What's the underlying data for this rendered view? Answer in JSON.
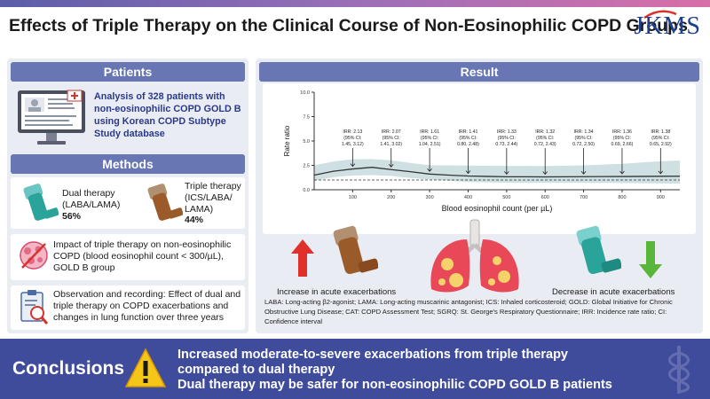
{
  "title": "Effects of Triple Therapy on the Clinical Course of Non-Eosinophilic COPD Groups",
  "logo": "JKMS",
  "patients": {
    "header": "Patients",
    "text": "Analysis of 328 patients with non-eosinophilic COPD GOLD B using Korean COPD Subtype Study database"
  },
  "methods": {
    "header": "Methods",
    "dual_label": "Dual therapy (LABA/LAMA)",
    "dual_pct": "56%",
    "triple_label": "Triple therapy (ICS/LABA/ LAMA)",
    "triple_pct": "44%",
    "impact_text": "Impact of triple therapy on non-eosinophilic COPD (blood eosinophil count < 300/µL), GOLD B group",
    "observation_text": "Observation and recording: Effect of dual and triple therapy on COPD exacerbations and changes in lung function over three years"
  },
  "result": {
    "header": "Result",
    "increase_label": "Increase in acute exacerbations",
    "decrease_label": "Decrease in acute exacerbations",
    "footnote": "LABA: Long-acting β2-agonist; LAMA: Long-acting muscarinic antagonist; ICS: Inhaled corticosteroid; GOLD: Global Initiative for Chronic Obstructive Lung Disease; CAT: COPD Assessment Test; SGRQ: St. George's Respiratory Questionnaire; IRR: Incidence rate ratio; CI: Confidence interval"
  },
  "conclusions": {
    "label": "Conclusions",
    "line1": "Increased moderate-to-severe exacerbations from triple therapy",
    "line2": "compared to dual therapy",
    "line3": "Dual therapy may be safer for non-eosinophilic COPD GOLD B patients"
  },
  "colors": {
    "accent": "#6876b3",
    "panel": "#e9ecf2",
    "bottom": "#3f4c9c",
    "up_arrow": "#e0302a",
    "down_arrow": "#5ab63a",
    "curve": "#333333",
    "band": "#cfe0e3"
  },
  "chart_data": {
    "type": "line",
    "xlabel": "Blood eosinophil count (per µL)",
    "ylabel": "Rate ratio",
    "xlim": [
      0,
      950
    ],
    "ylim": [
      0,
      10
    ],
    "x_ticks": [
      100,
      200,
      300,
      400,
      500,
      600,
      700,
      800,
      900
    ],
    "y_ticks": [
      "0.0",
      "2.5",
      "5.0",
      "7.5",
      "10.0"
    ],
    "curve": {
      "x": [
        0,
        50,
        100,
        150,
        200,
        250,
        300,
        350,
        400,
        450,
        500,
        550,
        600,
        650,
        700,
        750,
        800,
        850,
        900,
        950
      ],
      "y": [
        1.5,
        1.9,
        2.13,
        2.3,
        2.07,
        1.85,
        1.61,
        1.5,
        1.41,
        1.37,
        1.33,
        1.33,
        1.32,
        1.33,
        1.34,
        1.35,
        1.36,
        1.37,
        1.38,
        1.39
      ],
      "lower": [
        0.9,
        1.3,
        1.45,
        1.5,
        1.41,
        1.2,
        1.04,
        0.92,
        0.8,
        0.76,
        0.73,
        0.72,
        0.72,
        0.72,
        0.72,
        0.71,
        0.69,
        0.67,
        0.65,
        0.63
      ],
      "upper": [
        2.5,
        2.9,
        3.12,
        3.15,
        3.02,
        2.75,
        2.51,
        2.5,
        2.48,
        2.46,
        2.44,
        2.44,
        2.43,
        2.46,
        2.5,
        2.58,
        2.66,
        2.8,
        2.92,
        3.0
      ]
    },
    "reference_line": 1.0,
    "annotations": [
      {
        "x": 100,
        "irr": "IRR: 2.13",
        "ci_label": "(95% CI:",
        "ci": "1.45, 3.12)"
      },
      {
        "x": 200,
        "irr": "IRR: 2.07",
        "ci_label": "(95% CI:",
        "ci": "1.41, 3.02)"
      },
      {
        "x": 300,
        "irr": "IRR: 1.61",
        "ci_label": "(95% CI:",
        "ci": "1.04, 2.51)"
      },
      {
        "x": 400,
        "irr": "IRR: 1.41",
        "ci_label": "(95% CI:",
        "ci": "0.80, 2.48)"
      },
      {
        "x": 500,
        "irr": "IRR: 1.33",
        "ci_label": "(95% CI:",
        "ci": "0.73, 2.44)"
      },
      {
        "x": 600,
        "irr": "IRR: 1.32",
        "ci_label": "(95% CI:",
        "ci": "0.72, 2.43)"
      },
      {
        "x": 700,
        "irr": "IRR: 1.34",
        "ci_label": "(95% CI:",
        "ci": "0.72, 2.50)"
      },
      {
        "x": 800,
        "irr": "IRR: 1.36",
        "ci_label": "(95% CI:",
        "ci": "0.69, 2.66)"
      },
      {
        "x": 900,
        "irr": "IRR: 1.38",
        "ci_label": "(95% CI:",
        "ci": "0.65, 2.92)"
      }
    ]
  }
}
